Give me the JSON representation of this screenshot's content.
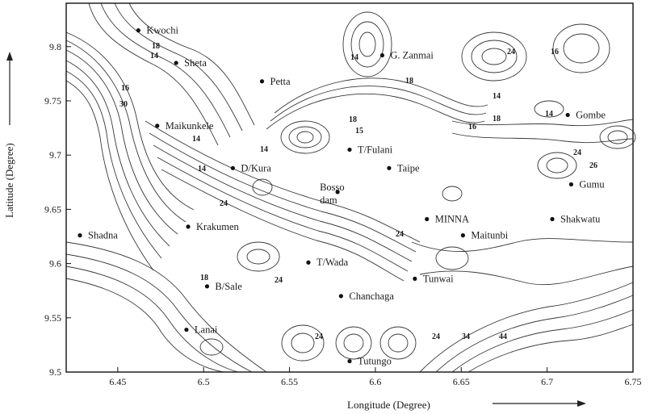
{
  "chart_data": {
    "type": "contour-map",
    "xlabel": "Longitude (Degree)",
    "ylabel": "Latitude (Degree)",
    "xlim": [
      6.42,
      6.75
    ],
    "ylim": [
      9.5,
      9.84
    ],
    "x_ticks": [
      "6.45",
      "6.5",
      "6.55",
      "6.6",
      "6.65",
      "6.7",
      "6.75"
    ],
    "x_tick_values": [
      6.45,
      6.5,
      6.55,
      6.6,
      6.65,
      6.7,
      6.75
    ],
    "y_ticks": [
      "9.5",
      "9.55",
      "9.6",
      "9.65",
      "9.7",
      "9.75",
      "9.8"
    ],
    "y_tick_values": [
      9.5,
      9.55,
      9.6,
      9.65,
      9.7,
      9.75,
      9.8
    ],
    "locations": [
      {
        "name": "Kwochi",
        "lon": 6.462,
        "lat": 9.815
      },
      {
        "name": "Sheta",
        "lon": 6.484,
        "lat": 9.785
      },
      {
        "name": "Petta",
        "lon": 6.534,
        "lat": 9.768
      },
      {
        "name": "G. Zanmai",
        "lon": 6.604,
        "lat": 9.792
      },
      {
        "name": "Maikunkele",
        "lon": 6.473,
        "lat": 9.727
      },
      {
        "name": "T/Fulani",
        "lon": 6.585,
        "lat": 9.705
      },
      {
        "name": "Gombe",
        "lon": 6.712,
        "lat": 9.737
      },
      {
        "name": "D/Kura",
        "lon": 6.517,
        "lat": 9.688
      },
      {
        "name": "Taipe",
        "lon": 6.608,
        "lat": 9.688
      },
      {
        "name": "Bosso dam",
        "lon": 6.578,
        "lat": 9.666
      },
      {
        "name": "Gumu",
        "lon": 6.714,
        "lat": 9.673
      },
      {
        "name": "Shadna",
        "lon": 6.428,
        "lat": 9.626
      },
      {
        "name": "Krakumen",
        "lon": 6.491,
        "lat": 9.634
      },
      {
        "name": "MINNA",
        "lon": 6.63,
        "lat": 9.641
      },
      {
        "name": "Shakwatu",
        "lon": 6.703,
        "lat": 9.641
      },
      {
        "name": "Maitunbi",
        "lon": 6.651,
        "lat": 9.626
      },
      {
        "name": "T/Wada",
        "lon": 6.561,
        "lat": 9.601
      },
      {
        "name": "B/Sale",
        "lon": 6.502,
        "lat": 9.579
      },
      {
        "name": "Tunwai",
        "lon": 6.623,
        "lat": 9.586
      },
      {
        "name": "Chanchaga",
        "lon": 6.58,
        "lat": 9.57
      },
      {
        "name": "Lanai",
        "lon": 6.49,
        "lat": 9.539
      },
      {
        "name": "Tutungo",
        "lon": 6.585,
        "lat": 9.51
      }
    ],
    "contour_labels": [
      "18",
      "14",
      "16",
      "30",
      "14",
      "18",
      "24",
      "16",
      "14",
      "18",
      "14",
      "16",
      "24",
      "26",
      "18",
      "15",
      "14",
      "24",
      "24",
      "14",
      "18",
      "24",
      "24",
      "24",
      "34",
      "44",
      "14"
    ]
  }
}
